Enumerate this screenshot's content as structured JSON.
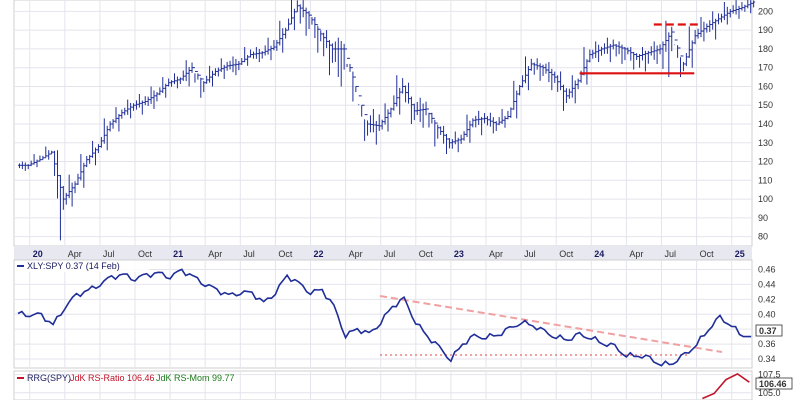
{
  "chart_data": [
    {
      "type": "candlestick",
      "ylim": [
        75,
        205
      ],
      "yticks": [
        80,
        90,
        100,
        110,
        120,
        130,
        140,
        150,
        160,
        170,
        180,
        190,
        200
      ],
      "xaxis_labels": [
        "20",
        "Apr",
        "Jul",
        "Oct",
        "21",
        "Apr",
        "Jul",
        "Oct",
        "22",
        "Apr",
        "Jul",
        "Oct",
        "23",
        "Apr",
        "Jul",
        "Oct",
        "24",
        "Apr",
        "Jul",
        "Oct",
        "25"
      ],
      "year_labels": [
        "20",
        "21",
        "22",
        "23",
        "24",
        "25"
      ],
      "color": "#1f2e99",
      "x": [
        "2019-12",
        "2020-01",
        "2020-02",
        "2020-03",
        "2020-04",
        "2020-05",
        "2020-06",
        "2020-07",
        "2020-08",
        "2020-09",
        "2020-10",
        "2020-11",
        "2020-12",
        "2021-01",
        "2021-02",
        "2021-03",
        "2021-04",
        "2021-05",
        "2021-06",
        "2021-07",
        "2021-08",
        "2021-09",
        "2021-10",
        "2021-11",
        "2021-12",
        "2022-01",
        "2022-02",
        "2022-03",
        "2022-04",
        "2022-05",
        "2022-06",
        "2022-07",
        "2022-08",
        "2022-09",
        "2022-10",
        "2022-11",
        "2022-12",
        "2023-01",
        "2023-02",
        "2023-03",
        "2023-04",
        "2023-05",
        "2023-06",
        "2023-07",
        "2023-08",
        "2023-09",
        "2023-10",
        "2023-11",
        "2023-12",
        "2024-01",
        "2024-02",
        "2024-03",
        "2024-04",
        "2024-05",
        "2024-06",
        "2024-07",
        "2024-08",
        "2024-09",
        "2024-10",
        "2024-11",
        "2024-12",
        "2025-01",
        "2025-02"
      ],
      "close": [
        118,
        121,
        125,
        100,
        108,
        121,
        128,
        140,
        146,
        150,
        152,
        156,
        162,
        164,
        170,
        162,
        168,
        171,
        172,
        177,
        178,
        181,
        190,
        203,
        198,
        188,
        180,
        180,
        160,
        140,
        139,
        148,
        160,
        147,
        148,
        138,
        130,
        132,
        142,
        143,
        140,
        144,
        160,
        172,
        170,
        165,
        155,
        163,
        177,
        180,
        182,
        180,
        176,
        178,
        180,
        189,
        172,
        187,
        192,
        196,
        200,
        202,
        205
      ],
      "high": [
        120,
        124,
        128,
        126,
        113,
        124,
        131,
        143,
        149,
        153,
        156,
        160,
        165,
        167,
        174,
        167,
        171,
        175,
        176,
        181,
        181,
        186,
        195,
        207,
        206,
        197,
        190,
        186,
        172,
        150,
        148,
        151,
        166,
        162,
        154,
        146,
        139,
        136,
        145,
        147,
        146,
        148,
        163,
        176,
        175,
        173,
        168,
        166,
        181,
        184,
        186,
        184,
        181,
        181,
        184,
        195,
        182,
        192,
        197,
        200,
        205,
        206,
        208
      ],
      "low": [
        115,
        117,
        121,
        78,
        96,
        106,
        118,
        126,
        136,
        143,
        145,
        148,
        154,
        159,
        160,
        154,
        160,
        164,
        166,
        171,
        173,
        174,
        178,
        190,
        187,
        178,
        166,
        160,
        152,
        131,
        129,
        136,
        145,
        140,
        138,
        128,
        124,
        125,
        130,
        134,
        135,
        138,
        143,
        158,
        163,
        158,
        147,
        151,
        161,
        173,
        173,
        172,
        169,
        168,
        172,
        165,
        165,
        170,
        184,
        185,
        193,
        196,
        199
      ]
    },
    {
      "type": "line",
      "ylim": [
        0.328,
        0.47
      ],
      "yticks": [
        0.34,
        0.36,
        0.38,
        0.4,
        0.42,
        0.44,
        0.46
      ],
      "color": "#1f2e99",
      "x": [
        "2019-12",
        "2020-01",
        "2020-02",
        "2020-03",
        "2020-04",
        "2020-05",
        "2020-06",
        "2020-07",
        "2020-08",
        "2020-09",
        "2020-10",
        "2020-11",
        "2020-12",
        "2021-01",
        "2021-02",
        "2021-03",
        "2021-04",
        "2021-05",
        "2021-06",
        "2021-07",
        "2021-08",
        "2021-09",
        "2021-10",
        "2021-11",
        "2021-12",
        "2022-01",
        "2022-02",
        "2022-03",
        "2022-04",
        "2022-05",
        "2022-06",
        "2022-07",
        "2022-08",
        "2022-09",
        "2022-10",
        "2022-11",
        "2022-12",
        "2023-01",
        "2023-02",
        "2023-03",
        "2023-04",
        "2023-05",
        "2023-06",
        "2023-07",
        "2023-08",
        "2023-09",
        "2023-10",
        "2023-11",
        "2023-12",
        "2024-01",
        "2024-02",
        "2024-03",
        "2024-04",
        "2024-05",
        "2024-06",
        "2024-07",
        "2024-08",
        "2024-09",
        "2024-10",
        "2024-11",
        "2024-12",
        "2025-01",
        "2025-02"
      ],
      "values": [
        0.401,
        0.4,
        0.398,
        0.386,
        0.41,
        0.425,
        0.432,
        0.441,
        0.449,
        0.453,
        0.448,
        0.452,
        0.455,
        0.451,
        0.458,
        0.45,
        0.441,
        0.432,
        0.425,
        0.43,
        0.428,
        0.415,
        0.43,
        0.451,
        0.441,
        0.43,
        0.432,
        0.41,
        0.372,
        0.38,
        0.373,
        0.39,
        0.41,
        0.42,
        0.39,
        0.37,
        0.355,
        0.34,
        0.36,
        0.37,
        0.37,
        0.372,
        0.38,
        0.39,
        0.385,
        0.376,
        0.37,
        0.366,
        0.372,
        0.369,
        0.361,
        0.356,
        0.345,
        0.345,
        0.34,
        0.333,
        0.335,
        0.345,
        0.36,
        0.38,
        0.395,
        0.385,
        0.37
      ],
      "label": "XLY:SPY 0.37 (14 Feb)",
      "last_value": "0.37"
    },
    {
      "type": "line",
      "ylim": [
        104.0,
        108.0
      ],
      "yticks": [
        105.0,
        107.5
      ],
      "label_prefix": "RRG(SPY)",
      "ratio_label": "JdK RS-Ratio 106.46",
      "mom_label": "JdK RS-Mom 99.77",
      "colors": {
        "ratio": "#c0142a",
        "mom": "#1a7a1a"
      },
      "series": [
        {
          "name": "JdK RS-Ratio",
          "x": [
            "2024-10",
            "2024-11",
            "2024-12",
            "2025-01",
            "2025-02"
          ],
          "values": [
            104.2,
            104.9,
            106.8,
            107.6,
            106.46
          ]
        }
      ],
      "last_value": "106.46"
    }
  ],
  "annotations": {
    "price_support": 167,
    "price_resistance": 193,
    "color": "#dd1111"
  }
}
